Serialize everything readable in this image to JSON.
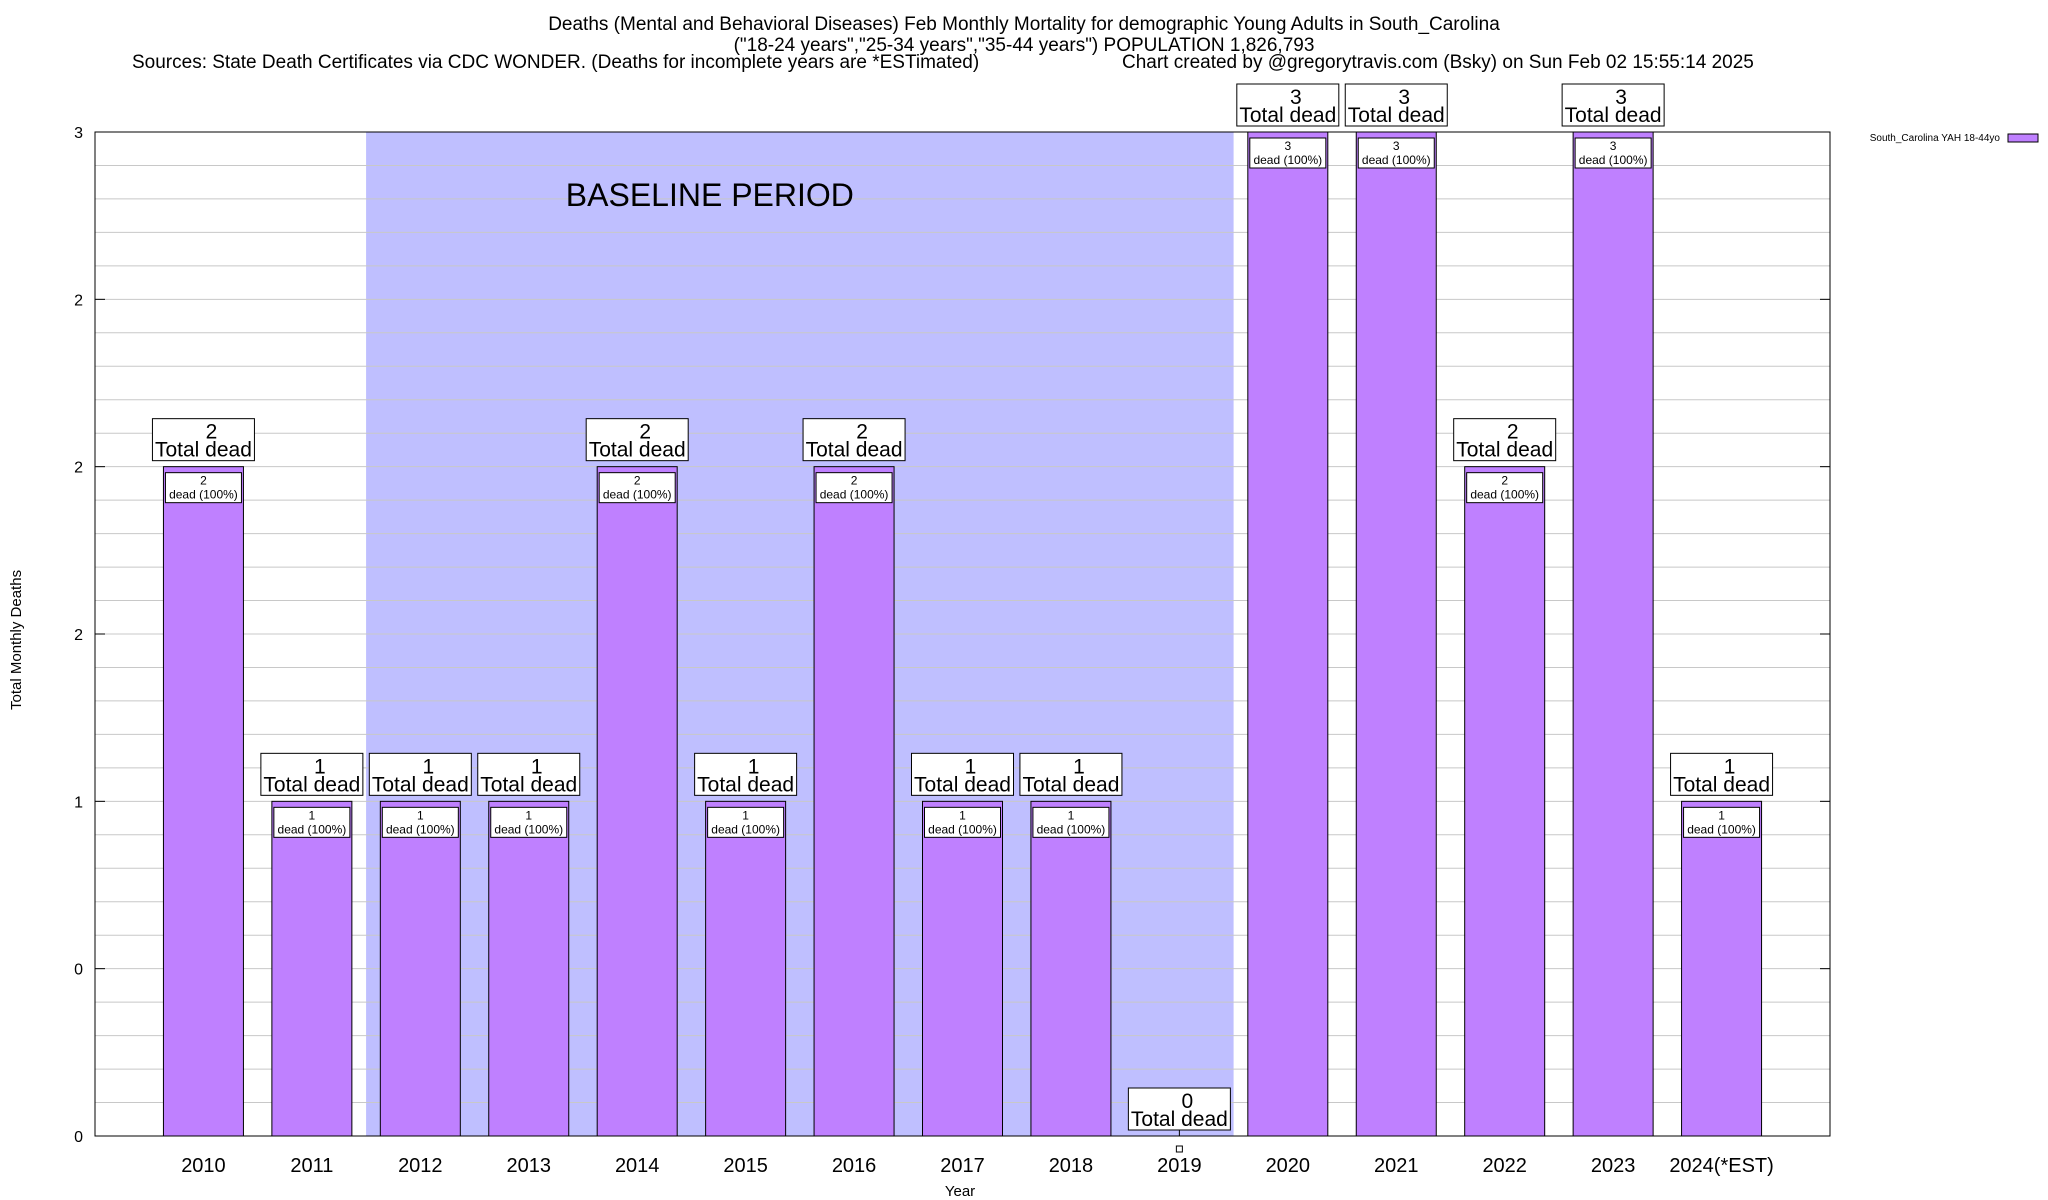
{
  "header": {
    "title_line1": "Deaths (Mental and Behavioral Diseases) Feb Monthly Mortality for demographic Young Adults in South_Carolina",
    "title_line2": "(\"18-24 years\",\"25-34 years\",\"35-44 years\") POPULATION 1,826,793",
    "sources": "Sources: State Death Certificates via CDC WONDER. (Deaths for incomplete years are *ESTimated)",
    "credit": "Chart created by @gregorytravis.com (Bsky) on Sun Feb 02 15:55:14 2025"
  },
  "chart_data": {
    "type": "bar",
    "title": "Deaths (Mental and Behavioral Diseases) Feb Monthly Mortality for demographic Young Adults in South_Carolina",
    "xlabel": "Year",
    "ylabel": "Total Monthly Deaths",
    "ylim": [
      0,
      3
    ],
    "yticks": [
      0,
      0.5,
      1,
      1.5,
      2,
      2.5,
      3
    ],
    "ytick_labels": [
      "0",
      "0",
      "1",
      "2",
      "2",
      "2",
      "3"
    ],
    "categories": [
      "2010",
      "2011",
      "2012",
      "2013",
      "2014",
      "2015",
      "2016",
      "2017",
      "2018",
      "2019",
      "2020",
      "2021",
      "2022",
      "2023",
      "2024(*EST)"
    ],
    "series": [
      {
        "name": "South_Carolina YAH 18-44yo",
        "color": "#bf80ff",
        "values": [
          2,
          1,
          1,
          1,
          2,
          1,
          2,
          1,
          1,
          0,
          3,
          3,
          2,
          3,
          1
        ]
      }
    ],
    "total_labels": [
      "2",
      "1",
      "1",
      "1",
      "2",
      "1",
      "2",
      "1",
      "1",
      "0",
      "3",
      "3",
      "2",
      "3",
      "1"
    ],
    "total_suffix": "Total dead",
    "inner_labels": [
      "2",
      "1",
      "1",
      "1",
      "2",
      "1",
      "2",
      "1",
      "1",
      "",
      "3",
      "3",
      "2",
      "3",
      "1"
    ],
    "inner_suffix": "dead (100%)",
    "baseline": {
      "label": "BASELINE PERIOD",
      "start": "2012",
      "end": "2019",
      "color": "#bfbfff"
    },
    "legend": {
      "position": "top-right",
      "label": "South_Carolina YAH 18-44yo"
    },
    "grid": true
  }
}
